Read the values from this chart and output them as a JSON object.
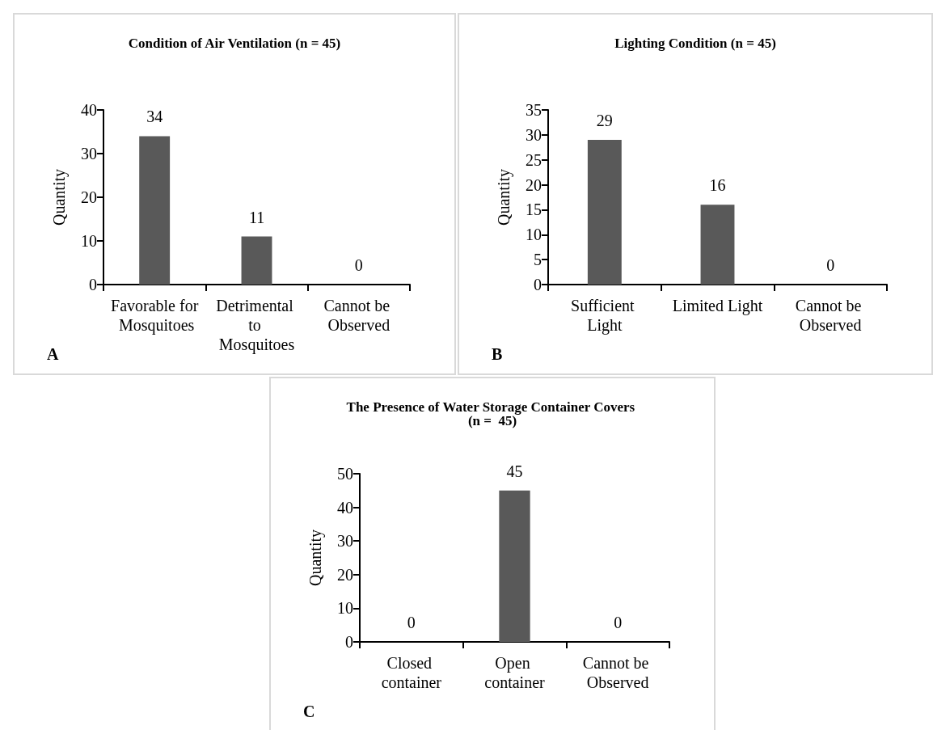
{
  "chart_data": [
    {
      "type": "bar",
      "title": "Condition of Air Ventilation (n = 45)",
      "ylabel": "Quantity",
      "categories": [
        "Favorable for Mosquitoes",
        "Detrimental to Mosquitoes",
        "Cannot be Observed"
      ],
      "values": [
        34,
        11,
        0
      ],
      "color": "#595959",
      "ylim": [
        0,
        40
      ],
      "yticks": [
        0,
        10,
        20,
        30,
        40
      ],
      "data_labels": true,
      "annotations": [
        "A"
      ]
    },
    {
      "type": "bar",
      "title": "Lighting Condition (n = 45)",
      "ylabel": "Quantity",
      "categories": [
        "Sufficient Light",
        "Limited Light",
        "Cannot be Observed"
      ],
      "values": [
        29,
        16,
        0
      ],
      "color": "#595959",
      "ylim": [
        0,
        35
      ],
      "yticks": [
        0,
        5,
        10,
        15,
        20,
        25,
        30,
        35
      ],
      "data_labels": true,
      "annotations": [
        "B"
      ]
    },
    {
      "type": "bar",
      "title": "The Presence of Water Storage Container Covers (n =  45)",
      "ylabel": "Quantity",
      "categories": [
        "Closed container",
        "Open container",
        "Cannot be Observed"
      ],
      "values": [
        0,
        45,
        0
      ],
      "color": "#595959",
      "ylim": [
        0,
        50
      ],
      "yticks": [
        0,
        10,
        20,
        30,
        40,
        50
      ],
      "data_labels": true,
      "annotations": [
        "C"
      ]
    }
  ]
}
